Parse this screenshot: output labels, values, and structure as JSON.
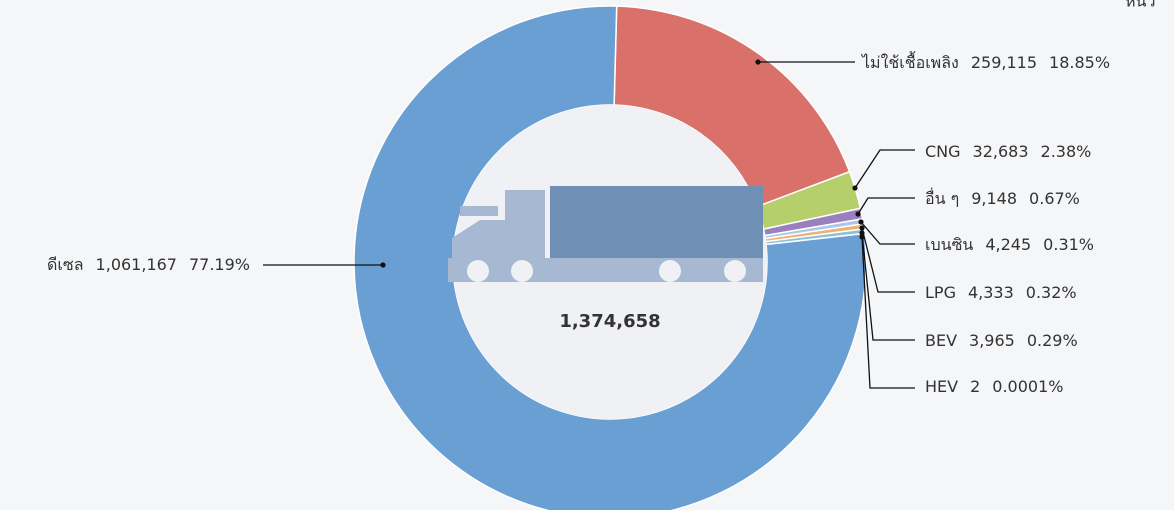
{
  "chart_data": {
    "type": "donut",
    "corner_note": "หน่ว",
    "categories": [
      "ไม่ใช้เชื้อเพลิง",
      "CNG",
      "อื่น ๆ",
      "เบนซิน",
      "LPG",
      "BEV",
      "HEV",
      "ดีเซล"
    ],
    "values": [
      259115,
      32683,
      9148,
      4245,
      4333,
      3965,
      2,
      1061167
    ],
    "value_labels": [
      "259,115",
      "32,683",
      "9,148",
      "4,245",
      "4,333",
      "3,965",
      "2",
      "1,061,167"
    ],
    "percent": [
      18.85,
      2.38,
      0.67,
      0.31,
      0.32,
      0.29,
      0.0001,
      77.19
    ],
    "percent_labels": [
      "18.85%",
      "2.38%",
      "0.67%",
      "0.31%",
      "0.32%",
      "0.29%",
      "0.0001%",
      "77.19%"
    ],
    "colors": [
      "#d9706a",
      "#b5cf6b",
      "#9b80bf",
      "#a9c7e6",
      "#f0b070",
      "#8dc0d8",
      "#c0c0c0",
      "#6a9fd4"
    ],
    "total": 1374658,
    "total_label": "1,374,658"
  }
}
